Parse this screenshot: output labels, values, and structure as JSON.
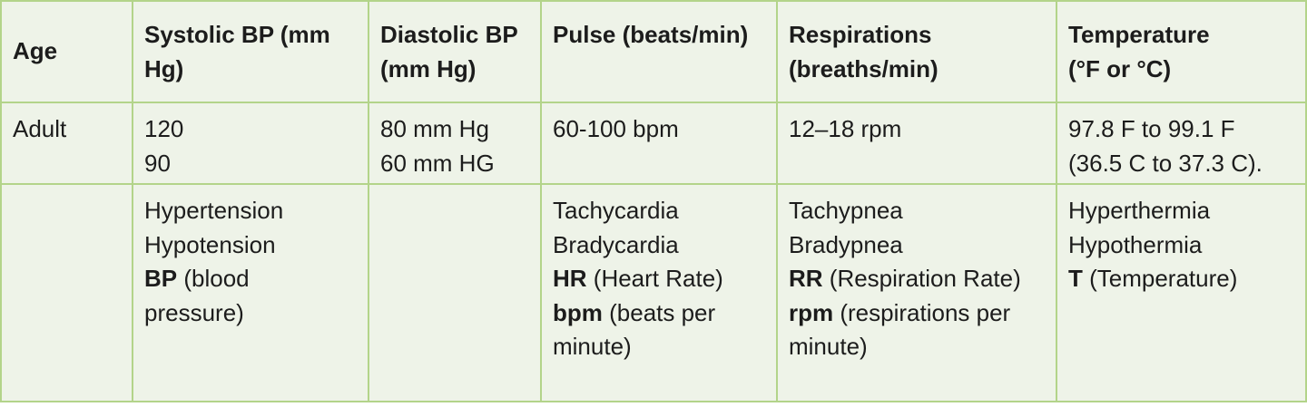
{
  "headers": {
    "age": "Age",
    "systolic": [
      "Systolic BP (mm",
      "Hg)"
    ],
    "diastolic": [
      "Diastolic BP",
      "(mm Hg)"
    ],
    "pulse": [
      "Pulse (beats/min)"
    ],
    "respirations": [
      "Respirations",
      "(breaths/min)"
    ],
    "temperature": [
      "Temperature",
      "(°F  or °C)"
    ]
  },
  "adult": {
    "age": "Adult",
    "systolic": [
      "120",
      "90"
    ],
    "diastolic": [
      "80 mm Hg",
      "60 mm HG"
    ],
    "pulse": [
      "60-100 bpm"
    ],
    "respirations": [
      "12–18 rpm"
    ],
    "temperature": [
      "97.8 F to 99.1 F",
      "(36.5 C to 37.3 C)."
    ]
  },
  "terms": {
    "systolic": {
      "plain": [
        "Hypertension",
        "Hypotension"
      ],
      "abbr": [
        {
          "abbr": "BP",
          "rest": " (blood"
        },
        {
          "abbr": "",
          "rest": "pressure)"
        }
      ]
    },
    "pulse": {
      "plain": [
        "Tachycardia",
        "Bradycardia"
      ],
      "abbr": [
        {
          "abbr": "HR",
          "rest": " (Heart Rate)"
        },
        {
          "abbr": "bpm",
          "rest": " (beats per"
        },
        {
          "abbr": "",
          "rest": "minute)"
        }
      ]
    },
    "respirations": {
      "plain": [
        "Tachypnea",
        "Bradypnea"
      ],
      "abbr": [
        {
          "abbr": "RR",
          "rest": " (Respiration Rate)"
        },
        {
          "abbr": "rpm",
          "rest": " (respirations per"
        },
        {
          "abbr": "",
          "rest": "minute)"
        }
      ]
    },
    "temperature": {
      "plain": [
        "Hyperthermia",
        "Hypothermia"
      ],
      "abbr": [
        {
          "abbr": "T",
          "rest": " (Temperature)"
        }
      ]
    }
  }
}
